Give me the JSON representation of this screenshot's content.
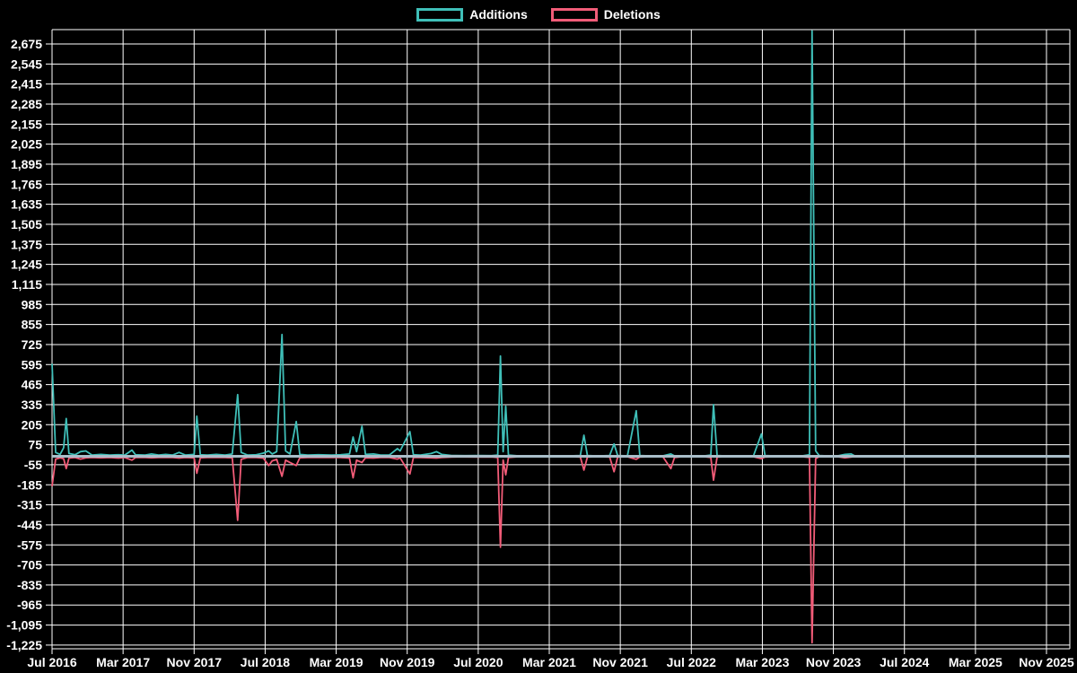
{
  "legend": {
    "items": [
      {
        "label": "Additions",
        "color": "#3FBFB8"
      },
      {
        "label": "Deletions",
        "color": "#F25C78"
      }
    ]
  },
  "colors": {
    "background": "#000000",
    "grid": "#ffffff",
    "tick_text": "#ffffff",
    "zero_line": "#A9BEC9",
    "additions": "#3FBFB8",
    "deletions": "#F25C78"
  },
  "chart_data": {
    "type": "line",
    "title": "",
    "xlabel": "",
    "ylabel": "",
    "legend_position": "top-center",
    "grid": true,
    "x_axis": {
      "unit": "months since Jul 2016",
      "range": [
        0,
        112
      ],
      "tick_months": [
        0,
        8,
        16,
        24,
        32,
        40,
        48,
        56,
        64,
        72,
        80,
        88,
        96,
        104,
        112
      ],
      "tick_labels": [
        "Jul 2016",
        "Mar 2017",
        "Nov 2017",
        "Jul 2018",
        "Mar 2019",
        "Nov 2019",
        "Jul 2020",
        "Mar 2021",
        "Nov 2021",
        "Jul 2022",
        "Mar 2023",
        "Nov 2023",
        "Jul 2024",
        "Mar 2025",
        "Nov 2025"
      ]
    },
    "y_axis": {
      "range": [
        -1245,
        2770
      ],
      "tick_step": 130,
      "tick_values": [
        2675,
        2545,
        2415,
        2285,
        2155,
        2025,
        1895,
        1765,
        1635,
        1505,
        1375,
        1245,
        1115,
        985,
        855,
        725,
        595,
        465,
        335,
        205,
        75,
        -55,
        -185,
        -315,
        -445,
        -575,
        -705,
        -835,
        -965,
        -1095,
        -1225
      ]
    },
    "series": [
      {
        "name": "Additions",
        "color": "#3FBFB8",
        "peak": 2760,
        "peak_at": "Sep 2023"
      },
      {
        "name": "Deletions",
        "color": "#F25C78",
        "trough": -1210,
        "trough_at": "Sep 2023"
      }
    ],
    "data_ends_month": 90.5,
    "points_format": [
      "month_offset",
      "additions",
      "deletions"
    ],
    "points": [
      [
        0,
        600,
        -195
      ],
      [
        0.4,
        25,
        -18
      ],
      [
        0.9,
        12,
        -10
      ],
      [
        1.3,
        55,
        -15
      ],
      [
        1.6,
        245,
        -80
      ],
      [
        1.9,
        18,
        -12
      ],
      [
        2.6,
        10,
        -8
      ],
      [
        3.2,
        30,
        -18
      ],
      [
        3.8,
        35,
        -10
      ],
      [
        4.5,
        8,
        -8
      ],
      [
        5.5,
        12,
        -10
      ],
      [
        6.5,
        8,
        -8
      ],
      [
        7.5,
        10,
        -12
      ],
      [
        8.2,
        8,
        -8
      ],
      [
        9.0,
        40,
        -25
      ],
      [
        9.4,
        10,
        -8
      ],
      [
        10.5,
        8,
        -8
      ],
      [
        11.2,
        15,
        -10
      ],
      [
        12.0,
        8,
        -8
      ],
      [
        12.8,
        12,
        -8
      ],
      [
        13.6,
        8,
        -8
      ],
      [
        14.3,
        25,
        -12
      ],
      [
        15.0,
        8,
        -8
      ],
      [
        16.0,
        12,
        -10
      ],
      [
        16.3,
        260,
        -110
      ],
      [
        16.7,
        10,
        -10
      ],
      [
        17.5,
        8,
        -8
      ],
      [
        18.5,
        12,
        -8
      ],
      [
        19.5,
        8,
        -8
      ],
      [
        20.3,
        15,
        -10
      ],
      [
        20.9,
        400,
        -415
      ],
      [
        21.3,
        25,
        -20
      ],
      [
        22.0,
        8,
        -8
      ],
      [
        23.0,
        10,
        -8
      ],
      [
        23.8,
        20,
        -12
      ],
      [
        24.4,
        35,
        -60
      ],
      [
        24.8,
        15,
        -30
      ],
      [
        25.3,
        30,
        -20
      ],
      [
        25.9,
        790,
        -130
      ],
      [
        26.3,
        35,
        -25
      ],
      [
        26.8,
        15,
        -40
      ],
      [
        27.5,
        225,
        -60
      ],
      [
        27.9,
        12,
        -10
      ],
      [
        28.8,
        8,
        -8
      ],
      [
        30.0,
        10,
        -8
      ],
      [
        31.5,
        8,
        -8
      ],
      [
        32.5,
        10,
        -8
      ],
      [
        33.5,
        15,
        -12
      ],
      [
        33.9,
        125,
        -140
      ],
      [
        34.3,
        30,
        -25
      ],
      [
        34.9,
        195,
        -40
      ],
      [
        35.3,
        12,
        -10
      ],
      [
        36.2,
        15,
        -12
      ],
      [
        37.0,
        8,
        -8
      ],
      [
        38.0,
        8,
        -8
      ],
      [
        38.9,
        50,
        -18
      ],
      [
        39.2,
        35,
        -10
      ],
      [
        40.3,
        160,
        -115
      ],
      [
        40.7,
        10,
        -8
      ],
      [
        41.5,
        8,
        -8
      ],
      [
        42.7,
        18,
        -10
      ],
      [
        43.3,
        30,
        -12
      ],
      [
        43.9,
        12,
        -8
      ],
      [
        45.0,
        5,
        -5
      ],
      [
        46.5,
        4,
        -4
      ],
      [
        48.0,
        5,
        -5
      ],
      [
        49.5,
        4,
        -4
      ],
      [
        50.2,
        8,
        -8
      ],
      [
        50.5,
        650,
        -590
      ],
      [
        50.8,
        30,
        -25
      ],
      [
        51.1,
        325,
        -120
      ],
      [
        51.4,
        8,
        -8
      ],
      [
        52.5,
        3,
        -3
      ],
      [
        54.0,
        2,
        -2
      ],
      [
        56.0,
        2,
        -2
      ],
      [
        58.0,
        2,
        -2
      ],
      [
        59.5,
        5,
        -5
      ],
      [
        59.9,
        137,
        -90
      ],
      [
        60.3,
        5,
        -5
      ],
      [
        61.5,
        2,
        -2
      ],
      [
        62.8,
        5,
        -5
      ],
      [
        63.3,
        80,
        -100
      ],
      [
        63.7,
        5,
        -5
      ],
      [
        64.8,
        3,
        -3
      ],
      [
        65.8,
        295,
        -20
      ],
      [
        66.2,
        5,
        -5
      ],
      [
        67.5,
        2,
        -2
      ],
      [
        68.8,
        3,
        -3
      ],
      [
        69.7,
        15,
        -80
      ],
      [
        70.1,
        3,
        -8
      ],
      [
        71.0,
        2,
        -2
      ],
      [
        72.0,
        3,
        -3
      ],
      [
        73.5,
        3,
        -3
      ],
      [
        74.2,
        8,
        -8
      ],
      [
        74.5,
        335,
        -155
      ],
      [
        74.9,
        5,
        -5
      ],
      [
        76.0,
        2,
        -2
      ],
      [
        77.5,
        2,
        -2
      ],
      [
        79.0,
        3,
        -3
      ],
      [
        79.9,
        145,
        -15
      ],
      [
        80.3,
        5,
        -5
      ],
      [
        81.5,
        2,
        -2
      ],
      [
        83.0,
        2,
        -2
      ],
      [
        84.5,
        3,
        -3
      ],
      [
        85.3,
        10,
        -8
      ],
      [
        85.6,
        2760,
        -1210
      ],
      [
        86.0,
        35,
        -15
      ],
      [
        86.4,
        5,
        -3
      ],
      [
        87.5,
        2,
        -2
      ],
      [
        88.5,
        3,
        -3
      ],
      [
        89.3,
        12,
        -10
      ],
      [
        90.0,
        15,
        -5
      ],
      [
        90.5,
        0,
        0
      ]
    ]
  }
}
